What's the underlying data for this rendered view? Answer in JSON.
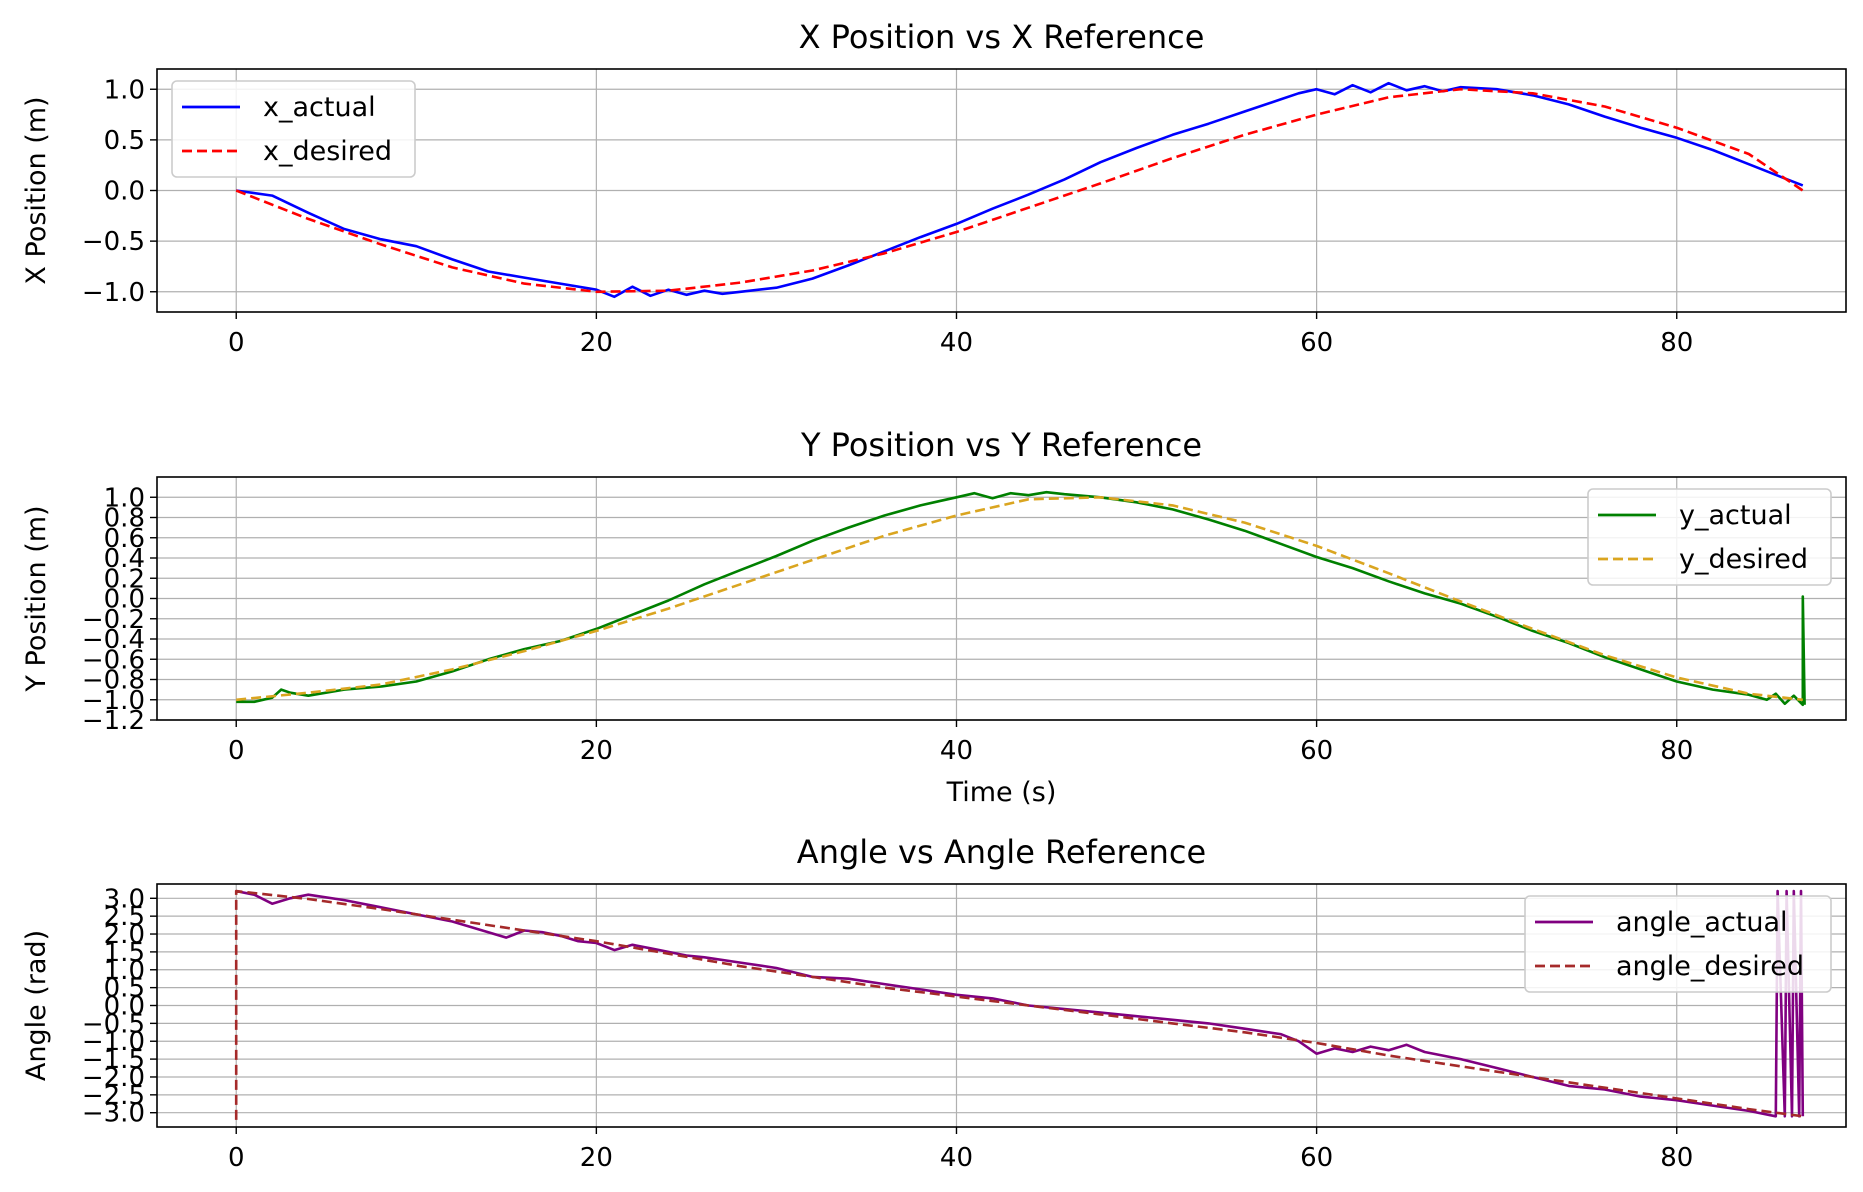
{
  "chart_data": [
    {
      "type": "line",
      "title": "X Position vs X Reference",
      "xlabel": "",
      "ylabel": "X Position (m)",
      "xlim": [
        -4.4,
        89.4
      ],
      "ylim": [
        -1.2,
        1.2
      ],
      "xticks": [
        0,
        20,
        40,
        60,
        80
      ],
      "xtick_labels": [
        "0",
        "20",
        "40",
        "60",
        "80"
      ],
      "yticks": [
        1.0,
        0.5,
        0.0,
        -0.5,
        -1.0
      ],
      "ytick_labels": [
        "1.0",
        "0.5",
        "0.0",
        "−0.5",
        "−1.0"
      ],
      "grid": true,
      "legend_position": "upper-left",
      "series": [
        {
          "name": "x_actual",
          "color": "#0000ff",
          "style": "solid",
          "x": [
            0,
            2,
            4,
            6,
            8,
            10,
            12,
            14,
            16,
            18,
            20,
            21,
            22,
            23,
            24,
            25,
            26,
            27,
            28,
            30,
            32,
            34,
            36,
            38,
            40,
            42,
            44,
            46,
            48,
            50,
            52,
            54,
            56,
            58,
            59,
            60,
            61,
            62,
            63,
            64,
            65,
            66,
            67,
            68,
            69,
            70,
            72,
            74,
            76,
            78,
            80,
            82,
            84,
            86,
            87
          ],
          "y": [
            0.0,
            -0.05,
            -0.22,
            -0.38,
            -0.48,
            -0.55,
            -0.68,
            -0.8,
            -0.86,
            -0.92,
            -0.98,
            -1.05,
            -0.95,
            -1.04,
            -0.98,
            -1.03,
            -0.99,
            -1.02,
            -1.0,
            -0.96,
            -0.87,
            -0.74,
            -0.6,
            -0.46,
            -0.33,
            -0.18,
            -0.04,
            0.11,
            0.28,
            0.42,
            0.55,
            0.66,
            0.78,
            0.9,
            0.96,
            1.0,
            0.95,
            1.04,
            0.97,
            1.06,
            0.99,
            1.03,
            0.98,
            1.02,
            1.01,
            1.0,
            0.94,
            0.85,
            0.73,
            0.62,
            0.52,
            0.4,
            0.26,
            0.12,
            0.05
          ]
        },
        {
          "name": "x_desired",
          "color": "#ff0000",
          "style": "dashed",
          "x": [
            0,
            4,
            8,
            12,
            16,
            20,
            24,
            28,
            32,
            36,
            40,
            44,
            48,
            52,
            56,
            60,
            64,
            68,
            72,
            76,
            80,
            84,
            87
          ],
          "y": [
            0.0,
            -0.28,
            -0.53,
            -0.76,
            -0.92,
            -1.0,
            -0.99,
            -0.91,
            -0.79,
            -0.62,
            -0.41,
            -0.17,
            0.07,
            0.32,
            0.55,
            0.75,
            0.92,
            1.0,
            0.96,
            0.83,
            0.62,
            0.36,
            0.0
          ]
        }
      ]
    },
    {
      "type": "line",
      "title": "Y Position vs Y Reference",
      "xlabel": "Time (s)",
      "ylabel": "Y Position (m)",
      "xlim": [
        -4.4,
        89.4
      ],
      "ylim": [
        -1.2,
        1.2
      ],
      "xticks": [
        0,
        20,
        40,
        60,
        80
      ],
      "xtick_labels": [
        "0",
        "20",
        "40",
        "60",
        "80"
      ],
      "yticks": [
        1.0,
        0.8,
        0.6,
        0.4,
        0.2,
        0.0,
        -0.2,
        -0.4,
        -0.6,
        -0.8,
        -1.0,
        -1.2
      ],
      "ytick_labels": [
        "1.0",
        "0.8",
        "0.6",
        "0.4",
        "0.2",
        "0.0",
        "−0.2",
        "−0.4",
        "−0.6",
        "−0.8",
        "−1.0",
        "−1.2"
      ],
      "grid": true,
      "legend_position": "upper-right",
      "series": [
        {
          "name": "y_actual",
          "color": "#008000",
          "style": "solid",
          "x": [
            0,
            1,
            2,
            2.5,
            3,
            4,
            6,
            8,
            10,
            12,
            14,
            16,
            18,
            20,
            22,
            24,
            26,
            28,
            30,
            32,
            34,
            36,
            38,
            39,
            40,
            41,
            42,
            43,
            44,
            45,
            46,
            48,
            50,
            52,
            54,
            56,
            58,
            60,
            62,
            64,
            66,
            68,
            70,
            72,
            74,
            76,
            78,
            80,
            82,
            84,
            85,
            85.5,
            86,
            86.5,
            87,
            87,
            87.1
          ],
          "y": [
            -1.02,
            -1.02,
            -0.98,
            -0.9,
            -0.93,
            -0.96,
            -0.9,
            -0.87,
            -0.82,
            -0.72,
            -0.6,
            -0.5,
            -0.42,
            -0.3,
            -0.16,
            -0.02,
            0.14,
            0.28,
            0.42,
            0.57,
            0.7,
            0.82,
            0.92,
            0.96,
            1.0,
            1.04,
            0.99,
            1.04,
            1.02,
            1.05,
            1.03,
            1.0,
            0.95,
            0.88,
            0.78,
            0.67,
            0.54,
            0.41,
            0.3,
            0.17,
            0.05,
            -0.05,
            -0.18,
            -0.32,
            -0.44,
            -0.58,
            -0.7,
            -0.82,
            -0.9,
            -0.95,
            -1.0,
            -0.94,
            -1.04,
            -0.96,
            -1.05,
            0.02,
            -1.05
          ]
        },
        {
          "name": "y_desired",
          "color": "#daa520",
          "style": "dashed",
          "x": [
            0,
            4,
            8,
            12,
            16,
            20,
            24,
            28,
            32,
            36,
            40,
            44,
            48,
            52,
            56,
            60,
            64,
            68,
            72,
            76,
            80,
            84,
            87
          ],
          "y": [
            -1.0,
            -0.93,
            -0.85,
            -0.7,
            -0.52,
            -0.32,
            -0.1,
            0.14,
            0.38,
            0.62,
            0.82,
            0.98,
            1.0,
            0.92,
            0.75,
            0.52,
            0.25,
            -0.03,
            -0.3,
            -0.56,
            -0.78,
            -0.94,
            -1.0
          ]
        }
      ]
    },
    {
      "type": "line",
      "title": "Angle vs Angle Reference",
      "xlabel": "Time (s)",
      "ylabel": "Angle (rad)",
      "xlim": [
        -4.4,
        89.4
      ],
      "ylim": [
        -3.4,
        3.4
      ],
      "xticks": [
        0,
        20,
        40,
        60,
        80
      ],
      "xtick_labels": [
        "0",
        "20",
        "40",
        "60",
        "80"
      ],
      "yticks": [
        3.0,
        2.5,
        2.0,
        1.5,
        1.0,
        0.5,
        0.0,
        -0.5,
        -1.0,
        -1.5,
        -2.0,
        -2.5,
        -3.0
      ],
      "ytick_labels": [
        "3.0",
        "2.5",
        "2.0",
        "1.5",
        "1.0",
        "0.5",
        "0.0",
        "−0.5",
        "−1.0",
        "−1.5",
        "−2.0",
        "−2.5",
        "−3.0"
      ],
      "grid": true,
      "legend_position": "upper-right",
      "series": [
        {
          "name": "angle_actual",
          "color": "#800080",
          "style": "solid",
          "x": [
            0,
            1,
            2,
            3,
            4,
            6,
            8,
            10,
            12,
            14,
            15,
            16,
            17,
            18,
            19,
            20,
            21,
            22,
            23,
            24,
            25,
            26,
            28,
            30,
            32,
            34,
            36,
            38,
            40,
            42,
            44,
            46,
            48,
            50,
            52,
            54,
            56,
            58,
            59,
            60,
            61,
            62,
            63,
            64,
            65,
            66,
            68,
            70,
            72,
            74,
            76,
            78,
            80,
            82,
            84,
            85.5,
            85.6,
            86,
            86.1,
            86.4,
            86.5,
            86.8,
            86.9,
            87
          ],
          "y": [
            3.2,
            3.1,
            2.85,
            3.0,
            3.1,
            2.95,
            2.75,
            2.55,
            2.35,
            2.05,
            1.9,
            2.1,
            2.05,
            1.95,
            1.8,
            1.75,
            1.55,
            1.7,
            1.6,
            1.5,
            1.4,
            1.35,
            1.2,
            1.05,
            0.8,
            0.75,
            0.6,
            0.45,
            0.3,
            0.2,
            0.0,
            -0.1,
            -0.2,
            -0.3,
            -0.4,
            -0.5,
            -0.65,
            -0.8,
            -1.0,
            -1.35,
            -1.2,
            -1.3,
            -1.15,
            -1.25,
            -1.1,
            -1.3,
            -1.5,
            -1.75,
            -2.0,
            -2.25,
            -2.35,
            -2.55,
            -2.65,
            -2.8,
            -2.95,
            -3.1,
            3.2,
            -3.1,
            3.2,
            -3.1,
            3.2,
            -3.1,
            3.2,
            -3.1
          ]
        },
        {
          "name": "angle_desired",
          "color": "#a52a2a",
          "style": "dashed",
          "x": [
            0,
            0,
            4,
            8,
            12,
            16,
            20,
            24,
            28,
            32,
            36,
            40,
            44,
            48,
            52,
            56,
            60,
            64,
            68,
            72,
            76,
            80,
            84,
            87
          ],
          "y": [
            -3.2,
            3.2,
            2.98,
            2.7,
            2.4,
            2.1,
            1.8,
            1.45,
            1.1,
            0.8,
            0.5,
            0.25,
            0.0,
            -0.25,
            -0.5,
            -0.75,
            -1.05,
            -1.4,
            -1.7,
            -2.0,
            -2.3,
            -2.6,
            -2.9,
            -3.1
          ]
        }
      ]
    }
  ]
}
